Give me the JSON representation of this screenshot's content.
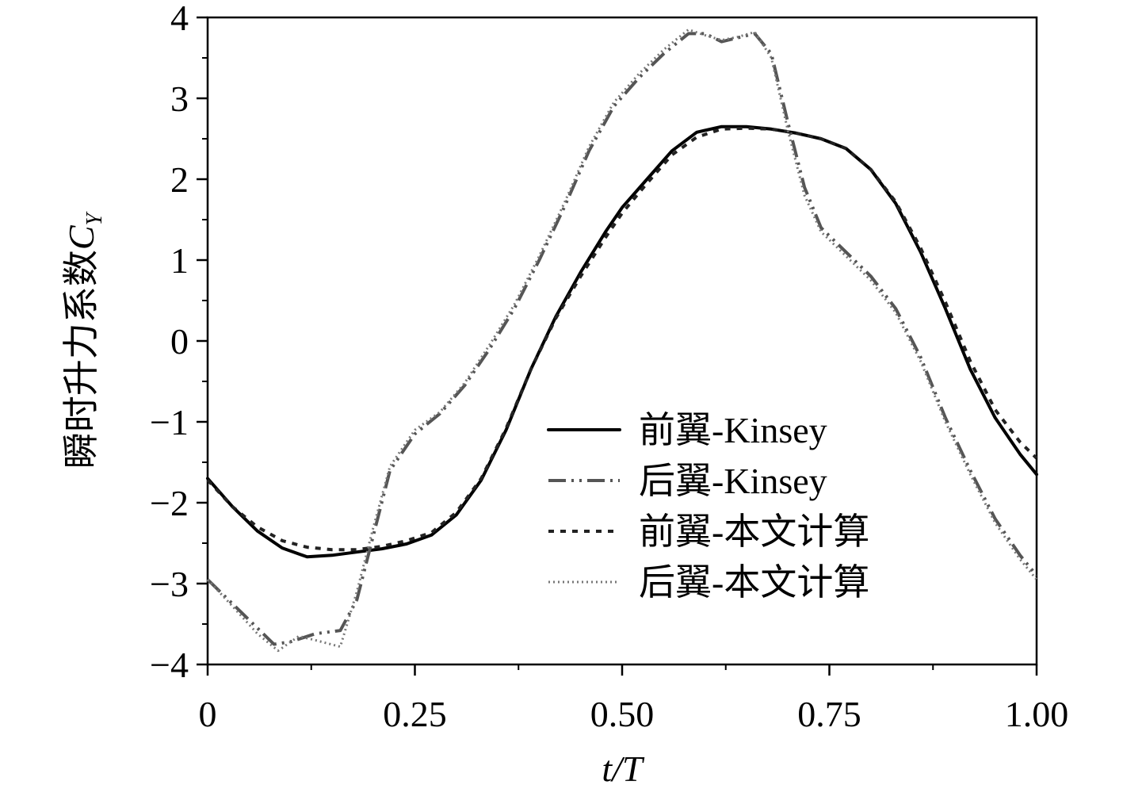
{
  "chart_data": {
    "type": "line",
    "xlabel": "t/T",
    "ylabel": "瞬时升力系数C_Y",
    "ylabel_main": "瞬时升力系数",
    "ylabel_symbol": "C",
    "ylabel_subscript": "Y",
    "xlim": [
      0,
      1.0
    ],
    "ylim": [
      -4,
      4
    ],
    "x_ticks": [
      {
        "value": 0,
        "label": "0"
      },
      {
        "value": 0.25,
        "label": "0.25"
      },
      {
        "value": 0.5,
        "label": "0.50"
      },
      {
        "value": 0.75,
        "label": "0.75"
      },
      {
        "value": 1.0,
        "label": "1.00"
      }
    ],
    "y_ticks": [
      {
        "value": 4,
        "label": "4"
      },
      {
        "value": 3,
        "label": "3"
      },
      {
        "value": 2,
        "label": "2"
      },
      {
        "value": 1,
        "label": "1"
      },
      {
        "value": 0,
        "label": "0"
      },
      {
        "value": -1,
        "label": "−1"
      },
      {
        "value": -2,
        "label": "−2"
      },
      {
        "value": -3,
        "label": "−3"
      },
      {
        "value": -4,
        "label": "−4"
      }
    ],
    "grid": false,
    "legend_position": "center-right",
    "series": [
      {
        "name": "前翼-Kinsey",
        "color": "#000000",
        "style": "solid",
        "x": [
          0,
          0.03,
          0.06,
          0.09,
          0.12,
          0.15,
          0.18,
          0.21,
          0.24,
          0.27,
          0.3,
          0.33,
          0.36,
          0.39,
          0.42,
          0.45,
          0.48,
          0.5,
          0.53,
          0.56,
          0.59,
          0.62,
          0.65,
          0.68,
          0.71,
          0.74,
          0.77,
          0.8,
          0.83,
          0.86,
          0.89,
          0.92,
          0.95,
          0.98,
          1.0
        ],
        "y": [
          -1.7,
          -2.05,
          -2.35,
          -2.56,
          -2.67,
          -2.65,
          -2.61,
          -2.57,
          -2.51,
          -2.4,
          -2.15,
          -1.72,
          -1.1,
          -0.35,
          0.3,
          0.85,
          1.35,
          1.65,
          2.0,
          2.35,
          2.58,
          2.65,
          2.65,
          2.62,
          2.57,
          2.5,
          2.38,
          2.12,
          1.7,
          1.1,
          0.4,
          -0.35,
          -0.95,
          -1.4,
          -1.65
        ]
      },
      {
        "name": "后翼-Kinsey",
        "color": "#555555",
        "style": "dash-dot-dot",
        "x": [
          0,
          0.03,
          0.06,
          0.08,
          0.1,
          0.13,
          0.16,
          0.18,
          0.2,
          0.22,
          0.25,
          0.28,
          0.31,
          0.34,
          0.37,
          0.4,
          0.43,
          0.46,
          0.49,
          0.52,
          0.55,
          0.58,
          0.6,
          0.62,
          0.64,
          0.66,
          0.68,
          0.7,
          0.72,
          0.74,
          0.77,
          0.8,
          0.83,
          0.86,
          0.89,
          0.92,
          0.95,
          0.98,
          1.0
        ],
        "y": [
          -2.95,
          -3.25,
          -3.55,
          -3.75,
          -3.72,
          -3.62,
          -3.58,
          -3.2,
          -2.4,
          -1.6,
          -1.15,
          -0.9,
          -0.55,
          -0.1,
          0.4,
          1.0,
          1.65,
          2.35,
          2.9,
          3.25,
          3.55,
          3.8,
          3.8,
          3.7,
          3.75,
          3.8,
          3.55,
          2.7,
          1.9,
          1.4,
          1.1,
          0.8,
          0.4,
          -0.2,
          -0.95,
          -1.6,
          -2.2,
          -2.65,
          -2.9
        ]
      },
      {
        "name": "前翼-本文计算",
        "color": "#222222",
        "style": "dashed",
        "x": [
          0,
          0.03,
          0.06,
          0.09,
          0.12,
          0.15,
          0.18,
          0.21,
          0.24,
          0.27,
          0.3,
          0.33,
          0.36,
          0.39,
          0.42,
          0.45,
          0.48,
          0.5,
          0.53,
          0.56,
          0.59,
          0.62,
          0.65,
          0.68,
          0.71,
          0.74,
          0.77,
          0.8,
          0.83,
          0.86,
          0.89,
          0.92,
          0.95,
          0.98,
          1.0
        ],
        "y": [
          -1.72,
          -2.05,
          -2.3,
          -2.47,
          -2.55,
          -2.58,
          -2.58,
          -2.54,
          -2.47,
          -2.37,
          -2.12,
          -1.7,
          -1.08,
          -0.35,
          0.28,
          0.8,
          1.28,
          1.58,
          1.95,
          2.3,
          2.52,
          2.62,
          2.63,
          2.62,
          2.57,
          2.5,
          2.38,
          2.12,
          1.72,
          1.15,
          0.48,
          -0.25,
          -0.85,
          -1.25,
          -1.45
        ]
      },
      {
        "name": "后翼-本文计算",
        "color": "#777777",
        "style": "dotted",
        "x": [
          0,
          0.03,
          0.06,
          0.085,
          0.11,
          0.13,
          0.16,
          0.18,
          0.2,
          0.22,
          0.25,
          0.28,
          0.31,
          0.34,
          0.37,
          0.4,
          0.43,
          0.46,
          0.49,
          0.52,
          0.55,
          0.58,
          0.6,
          0.62,
          0.64,
          0.66,
          0.68,
          0.7,
          0.72,
          0.74,
          0.77,
          0.8,
          0.83,
          0.86,
          0.89,
          0.92,
          0.95,
          0.98,
          1.0
        ],
        "y": [
          -2.95,
          -3.28,
          -3.62,
          -3.83,
          -3.65,
          -3.7,
          -3.78,
          -3.1,
          -2.3,
          -1.55,
          -1.1,
          -0.88,
          -0.52,
          -0.05,
          0.45,
          1.05,
          1.7,
          2.4,
          2.95,
          3.3,
          3.6,
          3.85,
          3.78,
          3.72,
          3.76,
          3.82,
          3.5,
          2.6,
          1.8,
          1.35,
          1.05,
          0.75,
          0.35,
          -0.25,
          -1.0,
          -1.65,
          -2.25,
          -2.7,
          -2.95
        ]
      }
    ]
  }
}
